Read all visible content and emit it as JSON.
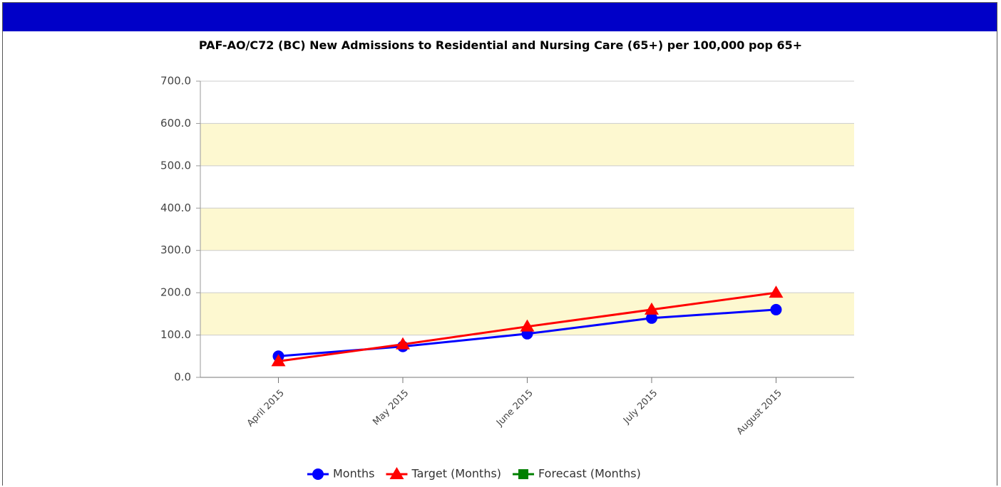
{
  "chart_data": {
    "type": "line",
    "title": "PAF-AO/C72 (BC) New Admissions to Residential and Nursing Care (65+) per 100,000 pop 65+",
    "categories": [
      "April 2015",
      "May 2015",
      "June 2015",
      "July 2015",
      "August 2015"
    ],
    "series": [
      {
        "name": "Months",
        "color": "#0000ff",
        "marker": "circle",
        "values": [
          50,
          73,
          103,
          140,
          160
        ]
      },
      {
        "name": "Target (Months)",
        "color": "#ff0000",
        "marker": "triangle",
        "values": [
          38,
          78,
          120,
          160,
          200
        ]
      },
      {
        "name": "Forecast (Months)",
        "color": "#008000",
        "marker": "square",
        "values": [
          null,
          null,
          null,
          null,
          null
        ]
      }
    ],
    "ylim": [
      0,
      700
    ],
    "yticks": [
      {
        "value": 0,
        "label": "0.0"
      },
      {
        "value": 100,
        "label": "100.0"
      },
      {
        "value": 200,
        "label": "200.0"
      },
      {
        "value": 300,
        "label": "300.0"
      },
      {
        "value": 400,
        "label": "400.0"
      },
      {
        "value": 500,
        "label": "500.0"
      },
      {
        "value": 600,
        "label": "600.0"
      },
      {
        "value": 700,
        "label": "700.0"
      }
    ],
    "grid": true,
    "bands": true,
    "legend": "bottom"
  }
}
